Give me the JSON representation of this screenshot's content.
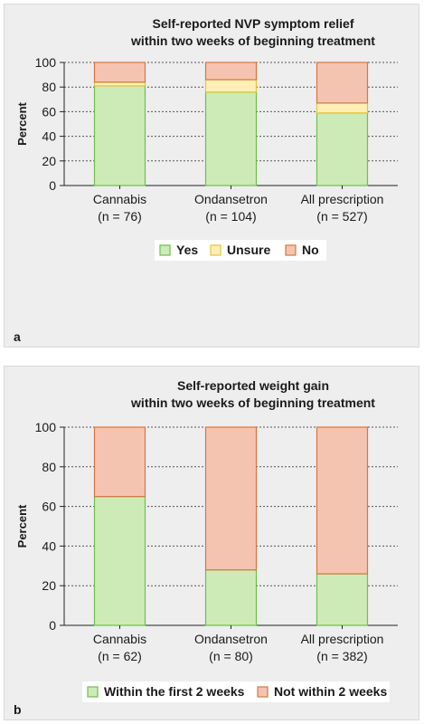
{
  "chart_data": [
    {
      "type": "bar",
      "stacked": true,
      "panel_label": "a",
      "title": [
        "Self-reported NVP symptom relief",
        "within two weeks of beginning treatment"
      ],
      "ylabel": "Percent",
      "ylim": [
        0,
        100
      ],
      "yticks": [
        "0",
        "20",
        "40",
        "60",
        "80",
        "100"
      ],
      "grid": "horizontal dotted",
      "legend_position": "bottom",
      "categories": [
        "Cannabis",
        "Ondansetron",
        "All prescription"
      ],
      "category_n": [
        "(n = 76)",
        "(n = 104)",
        "(n = 527)"
      ],
      "series": [
        {
          "name": "Yes",
          "values": [
            81,
            76,
            59
          ],
          "color": "#cdebb7"
        },
        {
          "name": "Unsure",
          "values": [
            3,
            10,
            8
          ],
          "color": "#fdefb6"
        },
        {
          "name": "No",
          "values": [
            16,
            14,
            33
          ],
          "color": "#f5c4b1"
        }
      ]
    },
    {
      "type": "bar",
      "stacked": true,
      "panel_label": "b",
      "title": [
        "Self-reported weight gain",
        "within two weeks of beginning treatment"
      ],
      "ylabel": "Percent",
      "ylim": [
        0,
        100
      ],
      "yticks": [
        "0",
        "20",
        "40",
        "60",
        "80",
        "100"
      ],
      "grid": "horizontal dotted",
      "legend_position": "bottom",
      "categories": [
        "Cannabis",
        "Ondansetron",
        "All prescription"
      ],
      "category_n": [
        "(n = 62)",
        "(n = 80)",
        "(n = 382)"
      ],
      "series": [
        {
          "name": "Within the first 2 weeks",
          "values": [
            65,
            28,
            26
          ],
          "color": "#cdebb7"
        },
        {
          "name": "Not within 2 weeks",
          "values": [
            35,
            72,
            74
          ],
          "color": "#f5c4b1"
        }
      ]
    }
  ],
  "colors": {
    "bar_edge": "#d5773f",
    "green_edge": "#6fbf4e",
    "yellow_edge": "#e8c43a",
    "panel_bg": "#eeeeee"
  }
}
